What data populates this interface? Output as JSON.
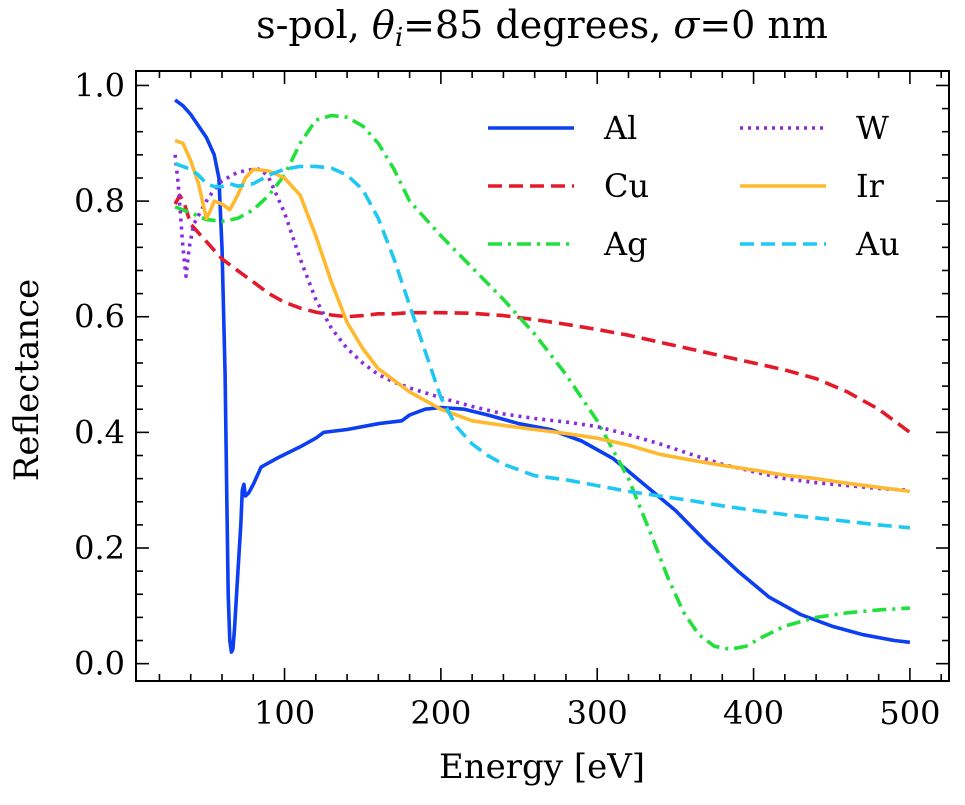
{
  "chart_data": {
    "type": "line",
    "title_parts": [
      "s-pol, ",
      "θ",
      "i",
      "=85 degrees, ",
      "σ",
      "=0 nm"
    ],
    "xlabel": "Energy [eV]",
    "ylabel": "Reflectance",
    "xlim": [
      5,
      525
    ],
    "ylim": [
      -0.03,
      1.025
    ],
    "x_ticks": [
      100,
      200,
      300,
      400,
      500
    ],
    "x_tick_labels": [
      "100",
      "200",
      "300",
      "400",
      "500"
    ],
    "x_minor_step": 20,
    "y_ticks": [
      0.0,
      0.2,
      0.4,
      0.6,
      0.8,
      1.0
    ],
    "y_tick_labels": [
      "0.0",
      "0.2",
      "0.4",
      "0.6",
      "0.8",
      "1.0"
    ],
    "y_minor_step": 0.04,
    "grid": false,
    "legend": {
      "position": "top-right",
      "columns": 2
    },
    "series": [
      {
        "name": "Al",
        "color": "#0c3ef2",
        "style": "solid",
        "points": [
          [
            30,
            0.975
          ],
          [
            35,
            0.965
          ],
          [
            40,
            0.95
          ],
          [
            45,
            0.93
          ],
          [
            50,
            0.91
          ],
          [
            55,
            0.88
          ],
          [
            58,
            0.84
          ],
          [
            60,
            0.72
          ],
          [
            62,
            0.5
          ],
          [
            63,
            0.3
          ],
          [
            64,
            0.12
          ],
          [
            65,
            0.04
          ],
          [
            66,
            0.02
          ],
          [
            67,
            0.025
          ],
          [
            68,
            0.06
          ],
          [
            70,
            0.15
          ],
          [
            72,
            0.24
          ],
          [
            73,
            0.3
          ],
          [
            74,
            0.31
          ],
          [
            75,
            0.29
          ],
          [
            77,
            0.295
          ],
          [
            80,
            0.31
          ],
          [
            85,
            0.34
          ],
          [
            95,
            0.355
          ],
          [
            110,
            0.375
          ],
          [
            120,
            0.39
          ],
          [
            125,
            0.4
          ],
          [
            140,
            0.405
          ],
          [
            160,
            0.415
          ],
          [
            175,
            0.42
          ],
          [
            180,
            0.43
          ],
          [
            190,
            0.44
          ],
          [
            200,
            0.443
          ],
          [
            215,
            0.44
          ],
          [
            230,
            0.43
          ],
          [
            250,
            0.415
          ],
          [
            270,
            0.405
          ],
          [
            290,
            0.385
          ],
          [
            310,
            0.355
          ],
          [
            330,
            0.31
          ],
          [
            350,
            0.265
          ],
          [
            370,
            0.21
          ],
          [
            390,
            0.16
          ],
          [
            410,
            0.115
          ],
          [
            430,
            0.085
          ],
          [
            450,
            0.065
          ],
          [
            470,
            0.05
          ],
          [
            490,
            0.04
          ],
          [
            500,
            0.037
          ]
        ]
      },
      {
        "name": "Cu",
        "color": "#e31a2a",
        "style": "dashed",
        "points": [
          [
            30,
            0.795
          ],
          [
            33,
            0.81
          ],
          [
            36,
            0.795
          ],
          [
            40,
            0.76
          ],
          [
            50,
            0.73
          ],
          [
            60,
            0.7
          ],
          [
            70,
            0.68
          ],
          [
            80,
            0.66
          ],
          [
            90,
            0.64
          ],
          [
            100,
            0.625
          ],
          [
            110,
            0.615
          ],
          [
            120,
            0.608
          ],
          [
            130,
            0.603
          ],
          [
            140,
            0.6
          ],
          [
            150,
            0.602
          ],
          [
            160,
            0.605
          ],
          [
            170,
            0.605
          ],
          [
            180,
            0.607
          ],
          [
            200,
            0.607
          ],
          [
            220,
            0.606
          ],
          [
            240,
            0.602
          ],
          [
            260,
            0.595
          ],
          [
            280,
            0.587
          ],
          [
            300,
            0.578
          ],
          [
            320,
            0.568
          ],
          [
            340,
            0.556
          ],
          [
            360,
            0.544
          ],
          [
            380,
            0.532
          ],
          [
            400,
            0.52
          ],
          [
            420,
            0.508
          ],
          [
            440,
            0.493
          ],
          [
            460,
            0.47
          ],
          [
            480,
            0.44
          ],
          [
            500,
            0.4
          ]
        ]
      },
      {
        "name": "Ag",
        "color": "#22e03c",
        "style": "dashdot",
        "points": [
          [
            30,
            0.79
          ],
          [
            40,
            0.78
          ],
          [
            50,
            0.768
          ],
          [
            60,
            0.765
          ],
          [
            70,
            0.77
          ],
          [
            80,
            0.785
          ],
          [
            90,
            0.81
          ],
          [
            100,
            0.845
          ],
          [
            110,
            0.9
          ],
          [
            120,
            0.94
          ],
          [
            130,
            0.948
          ],
          [
            140,
            0.945
          ],
          [
            150,
            0.93
          ],
          [
            160,
            0.9
          ],
          [
            170,
            0.855
          ],
          [
            180,
            0.8
          ],
          [
            200,
            0.74
          ],
          [
            220,
            0.685
          ],
          [
            240,
            0.63
          ],
          [
            260,
            0.57
          ],
          [
            280,
            0.5
          ],
          [
            300,
            0.42
          ],
          [
            320,
            0.32
          ],
          [
            335,
            0.22
          ],
          [
            345,
            0.15
          ],
          [
            355,
            0.09
          ],
          [
            365,
            0.05
          ],
          [
            375,
            0.03
          ],
          [
            385,
            0.025
          ],
          [
            395,
            0.03
          ],
          [
            405,
            0.045
          ],
          [
            420,
            0.065
          ],
          [
            440,
            0.08
          ],
          [
            460,
            0.088
          ],
          [
            480,
            0.093
          ],
          [
            500,
            0.096
          ]
        ]
      },
      {
        "name": "W",
        "color": "#8a2be2",
        "style": "dotted",
        "points": [
          [
            30,
            0.88
          ],
          [
            32,
            0.83
          ],
          [
            35,
            0.72
          ],
          [
            37,
            0.67
          ],
          [
            39,
            0.72
          ],
          [
            42,
            0.76
          ],
          [
            45,
            0.775
          ],
          [
            50,
            0.8
          ],
          [
            55,
            0.82
          ],
          [
            60,
            0.835
          ],
          [
            70,
            0.85
          ],
          [
            80,
            0.855
          ],
          [
            85,
            0.855
          ],
          [
            90,
            0.84
          ],
          [
            100,
            0.78
          ],
          [
            110,
            0.7
          ],
          [
            120,
            0.63
          ],
          [
            130,
            0.58
          ],
          [
            140,
            0.545
          ],
          [
            150,
            0.52
          ],
          [
            160,
            0.5
          ],
          [
            170,
            0.487
          ],
          [
            180,
            0.477
          ],
          [
            200,
            0.46
          ],
          [
            220,
            0.445
          ],
          [
            240,
            0.432
          ],
          [
            260,
            0.424
          ],
          [
            280,
            0.418
          ],
          [
            300,
            0.41
          ],
          [
            320,
            0.396
          ],
          [
            340,
            0.38
          ],
          [
            360,
            0.362
          ],
          [
            380,
            0.345
          ],
          [
            400,
            0.332
          ],
          [
            420,
            0.32
          ],
          [
            440,
            0.313
          ],
          [
            460,
            0.308
          ],
          [
            480,
            0.303
          ],
          [
            500,
            0.3
          ]
        ]
      },
      {
        "name": "Ir",
        "color": "#ffb92e",
        "style": "solid",
        "points": [
          [
            30,
            0.905
          ],
          [
            35,
            0.9
          ],
          [
            40,
            0.87
          ],
          [
            45,
            0.83
          ],
          [
            50,
            0.77
          ],
          [
            52,
            0.78
          ],
          [
            55,
            0.8
          ],
          [
            60,
            0.795
          ],
          [
            65,
            0.785
          ],
          [
            70,
            0.81
          ],
          [
            75,
            0.84
          ],
          [
            80,
            0.855
          ],
          [
            90,
            0.852
          ],
          [
            100,
            0.84
          ],
          [
            110,
            0.81
          ],
          [
            120,
            0.74
          ],
          [
            130,
            0.66
          ],
          [
            140,
            0.59
          ],
          [
            150,
            0.545
          ],
          [
            160,
            0.51
          ],
          [
            170,
            0.49
          ],
          [
            180,
            0.47
          ],
          [
            190,
            0.455
          ],
          [
            200,
            0.44
          ],
          [
            220,
            0.42
          ],
          [
            240,
            0.412
          ],
          [
            260,
            0.405
          ],
          [
            280,
            0.398
          ],
          [
            300,
            0.39
          ],
          [
            320,
            0.378
          ],
          [
            340,
            0.362
          ],
          [
            360,
            0.352
          ],
          [
            380,
            0.343
          ],
          [
            400,
            0.335
          ],
          [
            420,
            0.326
          ],
          [
            440,
            0.32
          ],
          [
            460,
            0.312
          ],
          [
            480,
            0.305
          ],
          [
            500,
            0.298
          ]
        ]
      },
      {
        "name": "Au",
        "color": "#1ec8f2",
        "style": "dashed",
        "points": [
          [
            30,
            0.865
          ],
          [
            35,
            0.86
          ],
          [
            40,
            0.855
          ],
          [
            45,
            0.845
          ],
          [
            50,
            0.83
          ],
          [
            55,
            0.825
          ],
          [
            60,
            0.825
          ],
          [
            65,
            0.83
          ],
          [
            70,
            0.826
          ],
          [
            80,
            0.83
          ],
          [
            90,
            0.845
          ],
          [
            100,
            0.855
          ],
          [
            110,
            0.86
          ],
          [
            120,
            0.86
          ],
          [
            130,
            0.857
          ],
          [
            140,
            0.845
          ],
          [
            150,
            0.82
          ],
          [
            160,
            0.77
          ],
          [
            170,
            0.7
          ],
          [
            180,
            0.62
          ],
          [
            190,
            0.54
          ],
          [
            200,
            0.46
          ],
          [
            210,
            0.41
          ],
          [
            220,
            0.38
          ],
          [
            230,
            0.36
          ],
          [
            240,
            0.345
          ],
          [
            260,
            0.325
          ],
          [
            280,
            0.318
          ],
          [
            300,
            0.308
          ],
          [
            320,
            0.298
          ],
          [
            340,
            0.29
          ],
          [
            360,
            0.282
          ],
          [
            380,
            0.273
          ],
          [
            400,
            0.265
          ],
          [
            420,
            0.258
          ],
          [
            440,
            0.252
          ],
          [
            460,
            0.246
          ],
          [
            480,
            0.24
          ],
          [
            500,
            0.235
          ]
        ]
      }
    ]
  }
}
